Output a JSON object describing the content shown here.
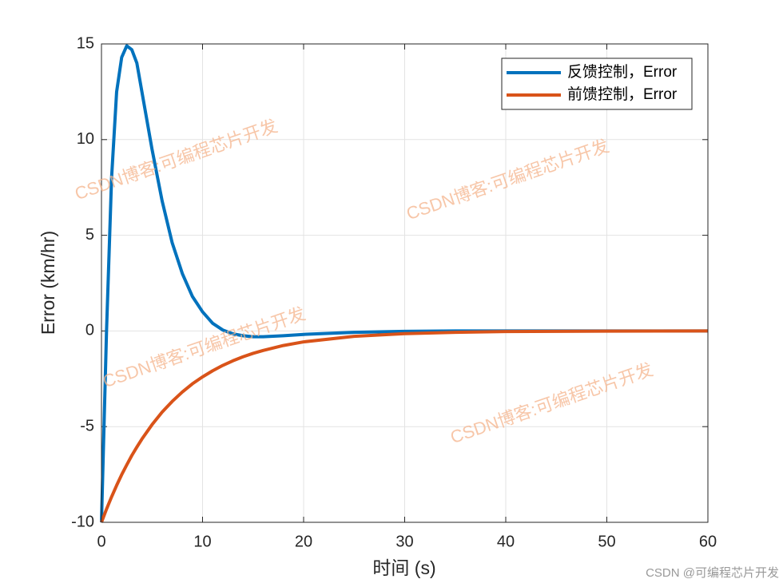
{
  "chart_data": {
    "type": "line",
    "x_label": "时间 (s)",
    "y_label": "Error (km/hr)",
    "x": [
      0,
      0.5,
      1,
      1.5,
      2,
      2.5,
      3,
      3.5,
      4,
      5,
      6,
      7,
      8,
      9,
      10,
      11,
      12,
      13,
      14,
      15,
      16,
      18,
      20,
      25,
      30,
      35,
      40,
      50,
      60
    ],
    "series": [
      {
        "name": "反馈控制，Error",
        "color": "#0072BD",
        "values": [
          -10,
          0,
          8,
          12.5,
          14.3,
          14.9,
          14.7,
          14,
          12.5,
          9.5,
          6.8,
          4.6,
          3,
          1.8,
          1.0,
          0.4,
          0.05,
          -0.15,
          -0.25,
          -0.3,
          -0.3,
          -0.25,
          -0.18,
          -0.07,
          -0.02,
          0,
          0,
          0,
          0
        ]
      },
      {
        "name": "前馈控制，Error",
        "color": "#D95319",
        "values": [
          -10,
          -9.31,
          -8.67,
          -8.07,
          -7.51,
          -7.0,
          -6.51,
          -6.07,
          -5.65,
          -4.9,
          -4.24,
          -3.68,
          -3.19,
          -2.76,
          -2.4,
          -2.08,
          -1.8,
          -1.56,
          -1.35,
          -1.17,
          -1.02,
          -0.76,
          -0.57,
          -0.28,
          -0.14,
          -0.07,
          -0.03,
          -0.01,
          0
        ]
      }
    ],
    "xlim": [
      0,
      60
    ],
    "xticks": [
      0,
      10,
      20,
      30,
      40,
      50,
      60
    ],
    "ylim": [
      -10,
      15
    ],
    "yticks": [
      -10,
      -5,
      0,
      5,
      10,
      15
    ],
    "grid": true,
    "legend": "upper right",
    "watermarks": [
      "CSDN博客:可编程芯片开发",
      "CSDN博客:可编程芯片开发",
      "CSDN博客:可编程芯片开发",
      "CSDN博客:可编程芯片开发"
    ],
    "footer": "CSDN @可编程芯片开发"
  }
}
